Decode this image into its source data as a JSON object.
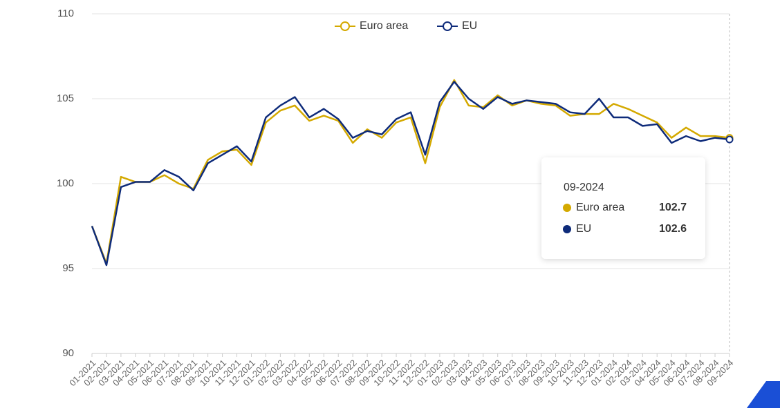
{
  "chart_data": {
    "type": "line",
    "categories": [
      "01-2021",
      "02-2021",
      "03-2021",
      "04-2021",
      "05-2021",
      "06-2021",
      "07-2021",
      "08-2021",
      "09-2021",
      "10-2021",
      "11-2021",
      "12-2021",
      "01-2022",
      "02-2022",
      "03-2022",
      "04-2022",
      "05-2022",
      "06-2022",
      "07-2022",
      "08-2022",
      "09-2022",
      "10-2022",
      "11-2022",
      "12-2022",
      "01-2023",
      "02-2023",
      "03-2023",
      "04-2023",
      "05-2023",
      "06-2023",
      "07-2023",
      "08-2023",
      "09-2023",
      "10-2023",
      "11-2023",
      "12-2023",
      "01-2024",
      "02-2024",
      "03-2024",
      "04-2024",
      "05-2024",
      "06-2024",
      "07-2024",
      "08-2024",
      "09-2024"
    ],
    "series": [
      {
        "name": "Euro area",
        "color": "#d4a900",
        "values": [
          97.5,
          95.3,
          100.4,
          100.1,
          100.1,
          100.5,
          100.0,
          99.7,
          101.4,
          101.9,
          102.0,
          101.1,
          103.6,
          104.3,
          104.6,
          103.7,
          104.0,
          103.7,
          102.4,
          103.2,
          102.7,
          103.6,
          103.9,
          101.2,
          104.5,
          106.1,
          104.6,
          104.5,
          105.2,
          104.6,
          104.9,
          104.7,
          104.6,
          104.0,
          104.1,
          104.1,
          104.7,
          104.4,
          104.0,
          103.6,
          102.7,
          103.3,
          102.8,
          102.8,
          102.7
        ]
      },
      {
        "name": "EU",
        "color": "#0e2b7a",
        "values": [
          97.5,
          95.2,
          99.8,
          100.1,
          100.1,
          100.8,
          100.4,
          99.6,
          101.2,
          101.7,
          102.2,
          101.3,
          103.9,
          104.6,
          105.1,
          103.9,
          104.4,
          103.8,
          102.7,
          103.1,
          102.9,
          103.8,
          104.2,
          101.7,
          104.8,
          106.0,
          105.0,
          104.4,
          105.1,
          104.7,
          104.9,
          104.8,
          104.7,
          104.2,
          104.1,
          105.0,
          103.9,
          103.9,
          103.4,
          103.5,
          102.4,
          102.8,
          102.5,
          102.7,
          102.6
        ]
      }
    ],
    "ylim": [
      90,
      110
    ],
    "yticks": [
      90,
      95,
      100,
      105,
      110
    ],
    "grid": true
  }
}
